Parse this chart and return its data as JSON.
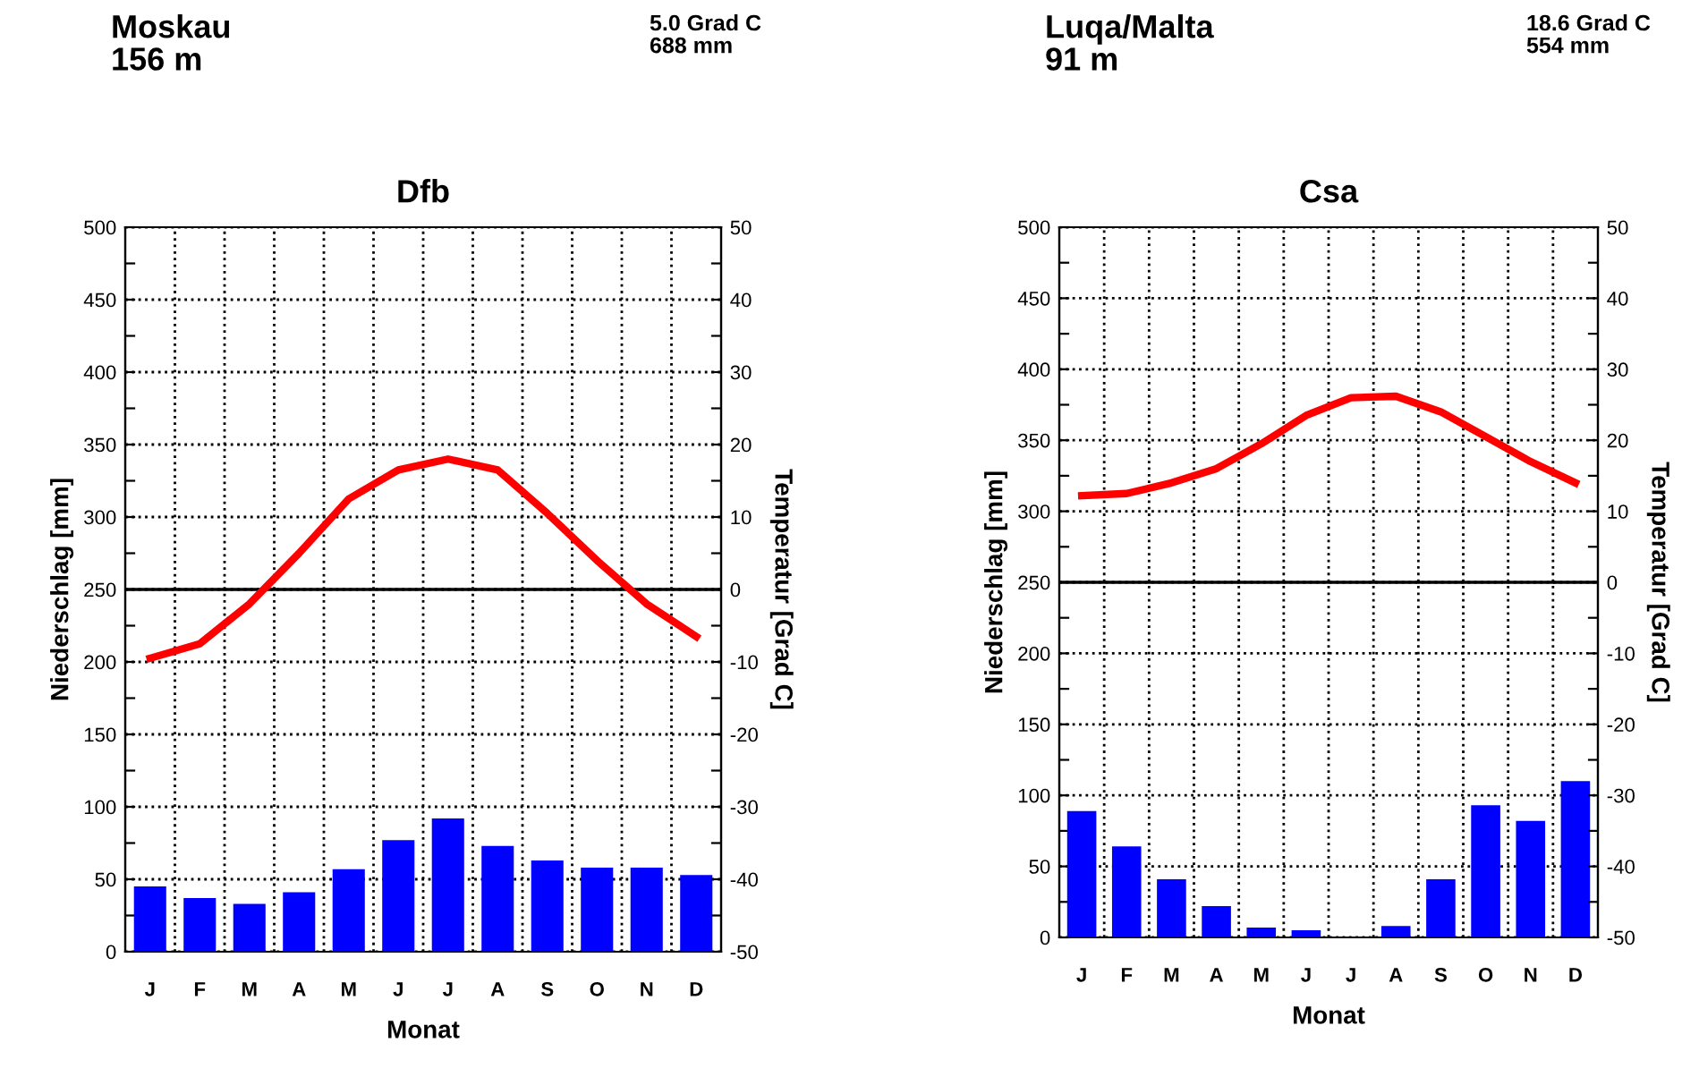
{
  "chart_data": [
    {
      "type": "bar",
      "title": "Dfb",
      "annotations": [
        "Moskau\n156 m",
        "5.0 Grad C\n688 mm"
      ],
      "xlabel": "Monat",
      "ylabel": "Niederschlag [mm]",
      "y2label": "Temperatur [Grad C]",
      "categories": [
        "J",
        "F",
        "M",
        "A",
        "M",
        "J",
        "J",
        "A",
        "S",
        "O",
        "N",
        "D"
      ],
      "series": [
        {
          "color": "#0000ff",
          "values": [
            45,
            37,
            33,
            41,
            57,
            77,
            92,
            73,
            63,
            58,
            58,
            53
          ]
        },
        {
          "type": "line",
          "axis": "y2",
          "color": "#ff0000",
          "values": [
            -9.5,
            -7.5,
            -2,
            5,
            12.5,
            16.5,
            18,
            16.5,
            10.5,
            4,
            -2,
            -6.5
          ]
        }
      ],
      "ylim": [
        0,
        500
      ],
      "yticks": [
        0,
        {
          "value": 25,
          "label": null
        },
        50,
        {
          "value": 75,
          "label": null
        },
        100,
        {
          "value": 125,
          "label": null
        },
        150,
        {
          "value": 175,
          "label": null
        },
        200,
        {
          "value": 225,
          "label": null
        },
        250,
        {
          "value": 275,
          "label": null
        },
        300,
        {
          "value": 325,
          "label": null
        },
        350,
        {
          "value": 375,
          "label": null
        },
        400,
        {
          "value": 425,
          "label": null
        },
        450,
        {
          "value": 475,
          "label": null
        },
        500
      ],
      "y2lim": [
        -50,
        50
      ],
      "y2ticks": [
        -50,
        {
          "value": -45,
          "label": null
        },
        -40,
        {
          "value": -35,
          "label": null
        },
        -30,
        {
          "value": -25,
          "label": null
        },
        -20,
        {
          "value": -15,
          "label": null
        },
        -10,
        {
          "value": -5,
          "label": null
        },
        0,
        {
          "value": 5,
          "label": null
        },
        10,
        {
          "value": 15,
          "label": null
        },
        20,
        {
          "value": 25,
          "label": null
        },
        30,
        {
          "value": 35,
          "label": null
        },
        40,
        {
          "value": 45,
          "label": null
        },
        50
      ],
      "grid": true,
      "ref_lines": [
        {
          "axis": "y2",
          "value": 0,
          "color": "#000000",
          "line_style": "solid"
        }
      ]
    },
    {
      "type": "bar",
      "title": "Csa",
      "annotations": [
        "Luqa/Malta\n91 m",
        "18.6 Grad C\n554 mm"
      ],
      "xlabel": "Monat",
      "ylabel": "Niederschlag [mm]",
      "y2label": "Temperatur [Grad C]",
      "categories": [
        "J",
        "F",
        "M",
        "A",
        "M",
        "J",
        "J",
        "A",
        "S",
        "O",
        "N",
        "D"
      ],
      "series": [
        {
          "color": "#0000ff",
          "values": [
            89,
            64,
            41,
            22,
            7,
            5,
            0,
            8,
            41,
            93,
            82,
            110
          ]
        },
        {
          "type": "line",
          "axis": "y2",
          "color": "#ff0000",
          "values": [
            12.2,
            12.5,
            14,
            16,
            19.5,
            23.5,
            26,
            26.2,
            24,
            20.5,
            17,
            14
          ]
        }
      ],
      "ylim": [
        0,
        500
      ],
      "yticks": [
        0,
        {
          "value": 25,
          "label": null
        },
        50,
        {
          "value": 75,
          "label": null
        },
        100,
        {
          "value": 125,
          "label": null
        },
        150,
        {
          "value": 175,
          "label": null
        },
        200,
        {
          "value": 225,
          "label": null
        },
        250,
        {
          "value": 275,
          "label": null
        },
        300,
        {
          "value": 325,
          "label": null
        },
        350,
        {
          "value": 375,
          "label": null
        },
        400,
        {
          "value": 425,
          "label": null
        },
        450,
        {
          "value": 475,
          "label": null
        },
        500
      ],
      "y2lim": [
        -50,
        50
      ],
      "y2ticks": [
        -50,
        {
          "value": -45,
          "label": null
        },
        -40,
        {
          "value": -35,
          "label": null
        },
        -30,
        {
          "value": -25,
          "label": null
        },
        -20,
        {
          "value": -15,
          "label": null
        },
        -10,
        {
          "value": -5,
          "label": null
        },
        0,
        {
          "value": 5,
          "label": null
        },
        10,
        {
          "value": 15,
          "label": null
        },
        20,
        {
          "value": 25,
          "label": null
        },
        30,
        {
          "value": 35,
          "label": null
        },
        40,
        {
          "value": 45,
          "label": null
        },
        50
      ],
      "grid": true,
      "ref_lines": [
        {
          "axis": "y2",
          "value": 0,
          "color": "#000000",
          "line_style": "solid"
        }
      ]
    }
  ]
}
